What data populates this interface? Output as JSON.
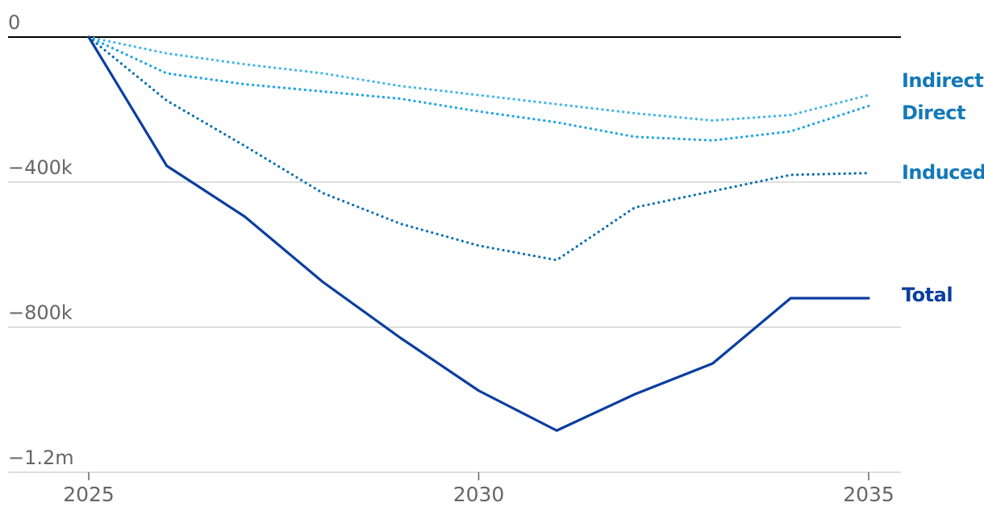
{
  "chart_data": {
    "type": "line",
    "title": "",
    "xlabel": "",
    "ylabel": "",
    "x": [
      2025,
      2026,
      2027,
      2028,
      2029,
      2030,
      2031,
      2032,
      2033,
      2034,
      2035
    ],
    "xlim": [
      2025,
      2035
    ],
    "ylim": [
      -1200000,
      0
    ],
    "x_ticks": [
      {
        "value": 2025,
        "label": "2025"
      },
      {
        "value": 2030,
        "label": "2030"
      },
      {
        "value": 2035,
        "label": "2035"
      }
    ],
    "y_ticks": [
      {
        "value": 0,
        "label": "0"
      },
      {
        "value": -400000,
        "label": "−400k"
      },
      {
        "value": -800000,
        "label": "−800k"
      },
      {
        "value": -1200000,
        "label": "−1.2m"
      }
    ],
    "grid": true,
    "legend": "direct labels at line ends (right)",
    "series": [
      {
        "name": "Indirect",
        "style": "dotted",
        "color": "#41b6e6",
        "values": [
          0,
          -45000,
          -75000,
          -100000,
          -135000,
          -160000,
          -185000,
          -210000,
          -230000,
          -215000,
          -160000
        ]
      },
      {
        "name": "Direct",
        "style": "dotted",
        "color": "#1aa3e8",
        "values": [
          0,
          -100000,
          -130000,
          -150000,
          -170000,
          -205000,
          -235000,
          -275000,
          -285000,
          -260000,
          -190000
        ]
      },
      {
        "name": "Induced",
        "style": "dotted",
        "color": "#0870b0",
        "values": [
          0,
          -175000,
          -300000,
          -430000,
          -515000,
          -575000,
          -615000,
          -470000,
          -425000,
          -380000,
          -375000
        ]
      },
      {
        "name": "Total",
        "style": "solid",
        "color": "#0b3ea0",
        "values": [
          0,
          -355000,
          -495000,
          -675000,
          -830000,
          -975000,
          -1085000,
          -985000,
          -900000,
          -720000,
          -720000
        ]
      }
    ]
  }
}
